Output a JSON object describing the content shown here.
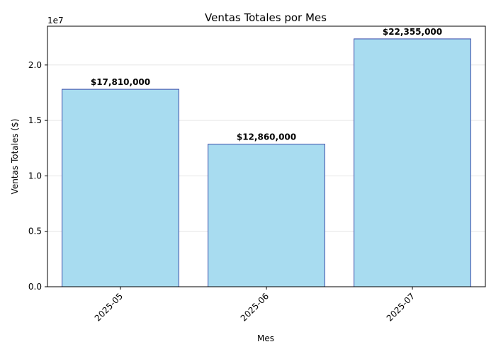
{
  "chart_data": {
    "type": "bar",
    "title": "Ventas Totales por Mes",
    "xlabel": "Mes",
    "ylabel": "Ventas Totales ($)",
    "y_offset_text": "1e7",
    "y_scale": 10000000,
    "categories": [
      "2025-05",
      "2025-06",
      "2025-07"
    ],
    "values": [
      17810000,
      12860000,
      22355000
    ],
    "data_labels": [
      "$17,810,000",
      "$12,860,000",
      "$22,355,000"
    ],
    "ylim": [
      0,
      23500000
    ],
    "yticks": [
      0,
      5000000,
      10000000,
      15000000,
      20000000
    ],
    "ytick_labels": [
      "0.0",
      "0.5",
      "1.0",
      "1.5",
      "2.0"
    ],
    "grid": "y",
    "bar_fill": "#a8dcf0",
    "bar_edge": "#3a4aa8",
    "grid_color": "#e6e6e6"
  }
}
